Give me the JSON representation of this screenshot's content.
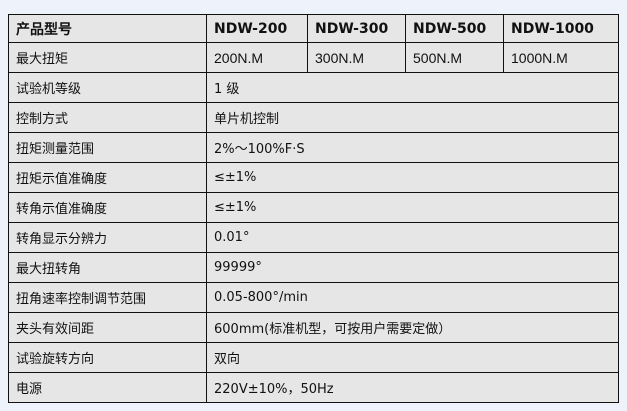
{
  "header": {
    "label": "产品型号",
    "models": [
      "NDW-200",
      "NDW-300",
      "NDW-500",
      "NDW-1000"
    ]
  },
  "max_torque": {
    "label": "最大扭矩",
    "values": [
      "200N.M",
      "300N.M",
      "500N.M",
      "1000N.M"
    ]
  },
  "rows": [
    {
      "label": "试验机等级",
      "value": "1 级"
    },
    {
      "label": "控制方式",
      "value": "单片机控制"
    },
    {
      "label": "扭矩测量范围",
      "value": "2%～100%F·S"
    },
    {
      "label": "扭矩示值准确度",
      "value": "≤±1%"
    },
    {
      "label": "转角示值准确度",
      "value": "≤±1%"
    },
    {
      "label": "转角显示分辨力",
      "value": "0.01°"
    },
    {
      "label": "最大扭转角",
      "value": "99999°"
    },
    {
      "label": "扭角速率控制调节范围",
      "value": "0.05-800°/min"
    },
    {
      "label": "夹头有效间距",
      "value": "600mm(标准机型，可按用户需要定做）"
    },
    {
      "label": "试验旋转方向",
      "value": "双向"
    },
    {
      "label": "电源",
      "value": "220V±10%，50Hz"
    }
  ]
}
